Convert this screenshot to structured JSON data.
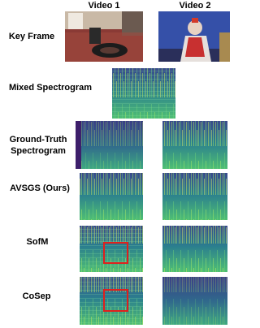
{
  "columns": [
    "Video 1",
    "Video 2"
  ],
  "rows": [
    {
      "label": "Key Frame"
    },
    {
      "label": "Mixed Spectrogram"
    },
    {
      "label": "Ground-Truth Spectrogram"
    },
    {
      "label": "AVSGS (Ours)"
    },
    {
      "label": "SofM"
    },
    {
      "label": "CoSep"
    }
  ]
}
